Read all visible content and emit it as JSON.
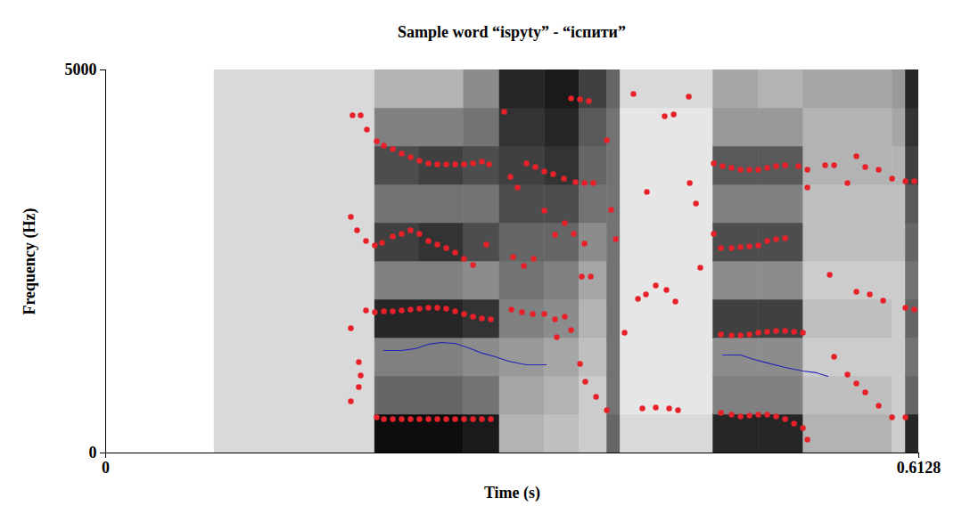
{
  "chart_data": {
    "type": "spectrogram",
    "title": "Sample word “ispyty” - “іспити”",
    "x_label": "Time (s)",
    "y_label": "Frequency (Hz)",
    "xlim": [
      0,
      0.6128
    ],
    "xticks": [
      0,
      0.6128
    ],
    "ylim": [
      0,
      5000
    ],
    "yticks": [
      0,
      5000
    ],
    "spectrogram": {
      "time_edges": [
        0,
        0.082,
        0.203,
        0.2365,
        0.27,
        0.297,
        0.331,
        0.357,
        0.378,
        0.388,
        0.458,
        0.492,
        0.526,
        0.593,
        0.603,
        0.6128
      ],
      "frequency_edges": [
        0,
        500,
        1000,
        1500,
        2000,
        2500,
        3000,
        3500,
        4000,
        4500,
        5000
      ],
      "intensity_range": [
        0,
        1
      ],
      "intensity": [
        [
          0,
          0,
          0,
          0,
          0,
          0,
          0,
          0,
          0,
          0
        ],
        [
          0.15,
          0.15,
          0.15,
          0.15,
          0.15,
          0.15,
          0.15,
          0.15,
          0.15,
          0.15
        ],
        [
          0.95,
          0.6,
          0.5,
          0.85,
          0.5,
          0.75,
          0.55,
          0.7,
          0.5,
          0.3
        ],
        [
          0.95,
          0.6,
          0.5,
          0.85,
          0.5,
          0.8,
          0.55,
          0.75,
          0.5,
          0.3
        ],
        [
          0.9,
          0.55,
          0.45,
          0.8,
          0.45,
          0.7,
          0.55,
          0.7,
          0.55,
          0.45
        ],
        [
          0.3,
          0.35,
          0.4,
          0.5,
          0.55,
          0.6,
          0.7,
          0.75,
          0.8,
          0.85
        ],
        [
          0.25,
          0.3,
          0.35,
          0.45,
          0.5,
          0.6,
          0.7,
          0.8,
          0.85,
          0.9
        ],
        [
          0.2,
          0.2,
          0.25,
          0.3,
          0.35,
          0.45,
          0.55,
          0.6,
          0.65,
          0.75
        ],
        [
          0.6,
          0.55,
          0.55,
          0.55,
          0.55,
          0.55,
          0.55,
          0.55,
          0.55,
          0.6
        ],
        [
          0.15,
          0.1,
          0.1,
          0.1,
          0.1,
          0.1,
          0.1,
          0.1,
          0.1,
          0.15
        ],
        [
          0.85,
          0.5,
          0.45,
          0.75,
          0.45,
          0.7,
          0.5,
          0.65,
          0.4,
          0.35
        ],
        [
          0.85,
          0.5,
          0.45,
          0.75,
          0.45,
          0.7,
          0.5,
          0.65,
          0.4,
          0.3
        ],
        [
          0.3,
          0.25,
          0.2,
          0.25,
          0.2,
          0.25,
          0.25,
          0.3,
          0.3,
          0.35
        ],
        [
          0.2,
          0.2,
          0.2,
          0.2,
          0.2,
          0.25,
          0.25,
          0.3,
          0.35,
          0.4
        ],
        [
          0.85,
          0.6,
          0.55,
          0.6,
          0.55,
          0.6,
          0.65,
          0.75,
          0.8,
          0.85
        ]
      ]
    },
    "series": [
      {
        "type": "scatter",
        "color": "#e8202a",
        "marker": "circle",
        "x": [
          0.1861,
          0.1922,
          0.1969,
          0.1848,
          0.1895,
          0.1962,
          0.1962,
          0.1848,
          0.1908,
          0.1922,
          0.1908,
          0.1848,
          0.2043,
          0.2097,
          0.2164,
          0.2231,
          0.2298,
          0.2365,
          0.2433,
          0.25,
          0.2567,
          0.2634,
          0.2701,
          0.2769,
          0.2836,
          0.289,
          0.2029,
          0.2083,
          0.2164,
          0.2231,
          0.2298,
          0.2365,
          0.2433,
          0.25,
          0.2567,
          0.2634,
          0.2701,
          0.2769,
          0.2869,
          0.2029,
          0.2097,
          0.2164,
          0.2231,
          0.2298,
          0.2365,
          0.2433,
          0.25,
          0.2567,
          0.2634,
          0.2701,
          0.2769,
          0.2836,
          0.2903,
          0.2043,
          0.2097,
          0.2164,
          0.2231,
          0.2298,
          0.2365,
          0.2433,
          0.25,
          0.2567,
          0.2634,
          0.2701,
          0.2769,
          0.2836,
          0.2903,
          0.3004,
          0.3051,
          0.3105,
          0.3172,
          0.3239,
          0.3306,
          0.3373,
          0.3454,
          0.3541,
          0.3609,
          0.3676,
          0.3071,
          0.3152,
          0.3226,
          0.3306,
          0.3387,
          0.3461,
          0.3528,
          0.3609,
          0.3058,
          0.3138,
          0.3219,
          0.3306,
          0.3387,
          0.3461,
          0.3508,
          0.34,
          0.3588,
          0.3656,
          0.3575,
          0.3615,
          0.3696,
          0.3777,
          0.3508,
          0.3575,
          0.3642,
          0.3777,
          0.381,
          0.3844,
          0.3978,
          0.3911,
          0.4012,
          0.4072,
          0.4146,
          0.4227,
          0.4294,
          0.4482,
          0.4045,
          0.4146,
          0.4247,
          0.4314,
          0.4281,
          0.4213,
          0.4395,
          0.4079,
          0.4402,
          0.4449,
          0.4583,
          0.4583,
          0.465,
          0.4717,
          0.4785,
          0.4852,
          0.4919,
          0.4986,
          0.5053,
          0.5121,
          0.5221,
          0.5289,
          0.4637,
          0.4717,
          0.4785,
          0.4852,
          0.4919,
          0.4986,
          0.5053,
          0.5121,
          0.4637,
          0.4717,
          0.4785,
          0.4852,
          0.4919,
          0.4986,
          0.5053,
          0.5121,
          0.5188,
          0.5255,
          0.4637,
          0.4717,
          0.4785,
          0.4852,
          0.4919,
          0.4986,
          0.5053,
          0.5121,
          0.5188,
          0.5255,
          0.5289,
          0.5289,
          0.5423,
          0.549,
          0.5591,
          0.5658,
          0.5725,
          0.5826,
          0.5927,
          0.6028,
          0.6095,
          0.5457,
          0.5658,
          0.5759,
          0.586,
          0.6028,
          0.6095,
          0.549,
          0.5591,
          0.5658,
          0.5725,
          0.5826,
          0.5927,
          0.6028
        ],
        "values": [
          4408,
          4408,
          4222,
          3082,
          2907,
          2768,
          1861,
          1628,
          1186,
          1012,
          861,
          675,
          4070,
          4012,
          3966,
          3908,
          3861,
          3815,
          3780,
          3768,
          3768,
          3768,
          3768,
          3780,
          3803,
          3768,
          2710,
          2745,
          2826,
          2861,
          2907,
          2861,
          2768,
          2721,
          2675,
          2617,
          2535,
          2454,
          2721,
          1838,
          1849,
          1849,
          1861,
          1872,
          1884,
          1896,
          1896,
          1884,
          1849,
          1814,
          1779,
          1756,
          1745,
          465,
          442,
          442,
          442,
          442,
          442,
          442,
          442,
          442,
          442,
          442,
          442,
          442,
          442,
          4454,
          3605,
          3466,
          3780,
          3733,
          3675,
          3640,
          3582,
          3536,
          3524,
          3524,
          2559,
          2442,
          2535,
          3163,
          2849,
          3000,
          2861,
          2733,
          1872,
          1838,
          1814,
          1814,
          1745,
          1779,
          1605,
          1512,
          2303,
          2303,
          1163,
          930,
          733,
          558,
          4629,
          4617,
          4594,
          4082,
          3175,
          2791,
          4687,
          1570,
          2012,
          2070,
          2186,
          2128,
          1977,
          2419,
          582,
          593,
          582,
          558,
          4419,
          4396,
          4652,
          3408,
          3524,
          3256,
          2861,
          3780,
          3745,
          3722,
          3698,
          3698,
          3698,
          3722,
          3745,
          3756,
          3745,
          3698,
          2675,
          2675,
          2686,
          2698,
          2710,
          2768,
          2791,
          2803,
          1547,
          1535,
          1535,
          1547,
          1570,
          1582,
          1593,
          1593,
          1582,
          1570,
          523,
          500,
          477,
          488,
          500,
          500,
          477,
          442,
          384,
          326,
          174,
          3466,
          3756,
          3756,
          3524,
          3873,
          3733,
          3698,
          3582,
          3547,
          3547,
          2326,
          2105,
          2070,
          1989,
          1896,
          1872,
          1256,
          1023,
          907,
          791,
          616,
          465,
          465
        ]
      },
      {
        "type": "line",
        "color": "#2323b8",
        "line_style": "solid",
        "x": [
          0.2097,
          0.2231,
          0.2332,
          0.2433,
          0.2533,
          0.2634,
          0.2735,
          0.2836,
          0.2937,
          0.3037,
          0.3172,
          0.332,
          0.4,
          0.465,
          0.4785,
          0.4885,
          0.4986,
          0.5121,
          0.5255,
          0.5356,
          0.5443
        ],
        "values": [
          1337,
          1337,
          1361,
          1419,
          1442,
          1430,
          1372,
          1303,
          1256,
          1198,
          1151,
          1151,
          null,
          1279,
          1279,
          1221,
          1175,
          1116,
          1070,
          1047,
          1000
        ]
      }
    ]
  }
}
